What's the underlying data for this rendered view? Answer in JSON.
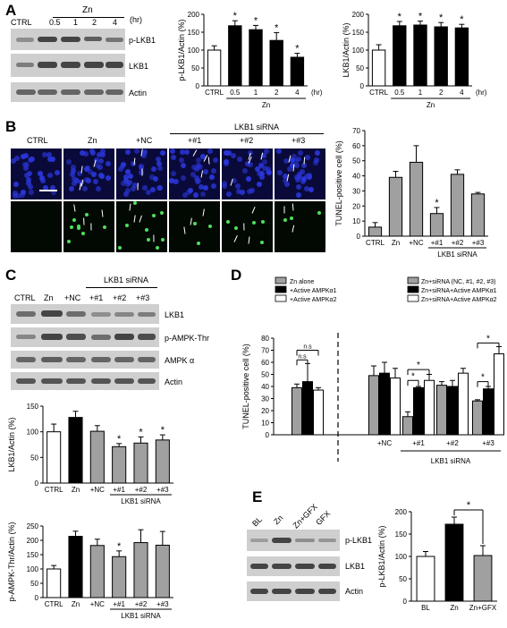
{
  "panels": {
    "A": {
      "letter": "A",
      "time_group": "Zn",
      "unit": "(hr)",
      "lanes": [
        "CTRL",
        "0.5",
        "1",
        "2",
        "4"
      ],
      "blot_labels": [
        "p-LKB1",
        "LKB1",
        "Actin"
      ]
    },
    "B": {
      "letter": "B",
      "group": "LKB1 siRNA",
      "lanes": [
        "CTRL",
        "Zn",
        "+NC",
        "+#1",
        "+#2",
        "+#3"
      ]
    },
    "C": {
      "letter": "C",
      "group": "LKB1 siRNA",
      "lanes": [
        "CTRL",
        "Zn",
        "+NC",
        "+#1",
        "+#2",
        "+#3"
      ],
      "blot_labels": [
        "LKB1",
        "p-AMPK-Thr",
        "AMPK α",
        "Actin"
      ]
    },
    "D": {
      "letter": "D"
    },
    "E": {
      "letter": "E",
      "lanes": [
        "BL",
        "Zn",
        "Zn+GFX",
        "GFX"
      ],
      "blot_labels": [
        "p-LKB1",
        "LKB1",
        "Actin"
      ]
    }
  },
  "chart_data": [
    {
      "id": "A1",
      "type": "bar",
      "categories": [
        "CTRL",
        "0.5",
        "1",
        "2",
        "4"
      ],
      "values": [
        100,
        168,
        157,
        127,
        80
      ],
      "errors": [
        12,
        14,
        12,
        22,
        11
      ],
      "colors": [
        "#ffffff",
        "#000000",
        "#000000",
        "#000000",
        "#000000"
      ],
      "sig": [
        false,
        true,
        true,
        true,
        true
      ],
      "ylabel": "p-LKB1/Actin (%)",
      "ylim": [
        0,
        200
      ],
      "yticks": [
        0,
        50,
        100,
        150,
        200
      ],
      "group_label": "Zn",
      "unit": "(hr)"
    },
    {
      "id": "A2",
      "type": "bar",
      "categories": [
        "CTRL",
        "0.5",
        "1",
        "2",
        "4"
      ],
      "values": [
        100,
        168,
        170,
        165,
        162
      ],
      "errors": [
        15,
        12,
        11,
        12,
        10
      ],
      "colors": [
        "#ffffff",
        "#000000",
        "#000000",
        "#000000",
        "#000000"
      ],
      "sig": [
        false,
        true,
        true,
        true,
        true
      ],
      "ylabel": "LKB1/Actin (%)",
      "ylim": [
        0,
        200
      ],
      "yticks": [
        0,
        50,
        100,
        150,
        200
      ],
      "group_label": "Zn",
      "unit": "(hr)"
    },
    {
      "id": "B",
      "type": "bar",
      "categories": [
        "CTRL",
        "Zn",
        "+NC",
        "+#1",
        "+#2",
        "+#3"
      ],
      "values": [
        6,
        39,
        49,
        15,
        41,
        28
      ],
      "errors": [
        3,
        4,
        11,
        4,
        3,
        1
      ],
      "colors": [
        "#a0a0a0",
        "#a0a0a0",
        "#a0a0a0",
        "#a0a0a0",
        "#a0a0a0",
        "#a0a0a0"
      ],
      "sig": [
        false,
        false,
        false,
        true,
        false,
        false
      ],
      "ylabel": "TUNEL-positive cell (%)",
      "ylim": [
        0,
        70
      ],
      "yticks": [
        0,
        10,
        20,
        30,
        40,
        50,
        60,
        70
      ],
      "group_label": "LKB1 siRNA"
    },
    {
      "id": "C1",
      "type": "bar",
      "categories": [
        "CTRL",
        "Zn",
        "+NC",
        "+#1",
        "+#2",
        "+#3"
      ],
      "values": [
        100,
        128,
        101,
        71,
        78,
        84
      ],
      "errors": [
        15,
        12,
        11,
        6,
        12,
        10
      ],
      "colors": [
        "#ffffff",
        "#000000",
        "#a0a0a0",
        "#a0a0a0",
        "#a0a0a0",
        "#a0a0a0"
      ],
      "sig": [
        false,
        false,
        false,
        true,
        true,
        true
      ],
      "ylabel": "LKB1/Actin (%)",
      "ylim": [
        0,
        150
      ],
      "yticks": [
        0,
        50,
        100,
        150
      ],
      "group_label": "LKB1 siRNA"
    },
    {
      "id": "C2",
      "type": "bar",
      "categories": [
        "CTRL",
        "Zn",
        "+NC",
        "+#1",
        "+#2",
        "+#3"
      ],
      "values": [
        100,
        214,
        182,
        143,
        192,
        183
      ],
      "errors": [
        12,
        18,
        22,
        20,
        45,
        48
      ],
      "colors": [
        "#ffffff",
        "#000000",
        "#a0a0a0",
        "#a0a0a0",
        "#a0a0a0",
        "#a0a0a0"
      ],
      "sig": [
        false,
        false,
        false,
        true,
        false,
        false
      ],
      "ylabel": "p-AMPK-Thr/Actin (%)",
      "ylim": [
        0,
        250
      ],
      "yticks": [
        0,
        50,
        100,
        150,
        200,
        250
      ],
      "group_label": "LKB1 siRNA"
    },
    {
      "id": "D",
      "type": "bar",
      "ylabel": "TUNEL-positive cell (%)",
      "ylim": [
        0,
        80
      ],
      "yticks": [
        0,
        10,
        20,
        30,
        40,
        50,
        60,
        70,
        80
      ],
      "legend_left": [
        "Zn alone",
        "+Active AMPKα1",
        "+Active AMPKα2"
      ],
      "legend_right": [
        "Zn+siRNA (NC, #1, #2, #3)",
        "Zn+siRNA+Active AMPKα1",
        "Zn+siRNA+Active AMPKα2"
      ],
      "categories": [
        "",
        "+NC",
        "+#1",
        "+#2",
        "+#3"
      ],
      "series": [
        {
          "values": [
            39,
            49,
            15,
            41,
            28
          ],
          "errors": [
            3,
            8,
            4,
            3,
            1
          ],
          "color": "#a0a0a0"
        },
        {
          "values": [
            44,
            51,
            39,
            40,
            38
          ],
          "errors": [
            15,
            9,
            1,
            5,
            2
          ],
          "color": "#000000"
        },
        {
          "values": [
            37,
            47,
            45,
            51,
            67
          ],
          "errors": [
            2,
            8,
            5,
            4,
            6
          ],
          "color": "#ffffff"
        }
      ],
      "ns_label": "n.s",
      "group_label": "LKB1 siRNA"
    },
    {
      "id": "E",
      "type": "bar",
      "categories": [
        "BL",
        "Zn",
        "Zn+GFX"
      ],
      "values": [
        100,
        172,
        102
      ],
      "errors": [
        11,
        16,
        22
      ],
      "colors": [
        "#ffffff",
        "#000000",
        "#a0a0a0"
      ],
      "ylabel": "p-LKB1/Actin (%)",
      "ylim": [
        0,
        200
      ],
      "yticks": [
        0,
        50,
        100,
        150,
        200
      ]
    }
  ],
  "sig_mark": "*"
}
